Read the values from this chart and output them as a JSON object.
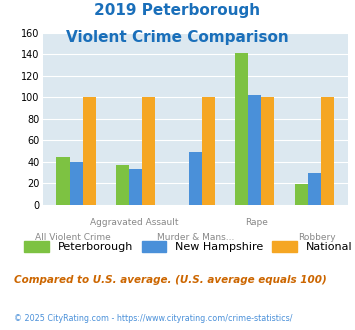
{
  "title_line1": "2019 Peterborough",
  "title_line2": "Violent Crime Comparison",
  "title_color": "#1a6fba",
  "categories": [
    "All Violent Crime",
    "Aggravated Assault",
    "Murder & Mans...",
    "Rape",
    "Robbery"
  ],
  "peterborough": [
    44,
    37,
    0,
    141,
    19
  ],
  "new_hampshire": [
    40,
    33,
    49,
    102,
    29
  ],
  "national": [
    100,
    100,
    100,
    100,
    100
  ],
  "colors": {
    "peterborough": "#7dc242",
    "new_hampshire": "#4a90d9",
    "national": "#f5a623"
  },
  "ylim": [
    0,
    160
  ],
  "yticks": [
    0,
    20,
    40,
    60,
    80,
    100,
    120,
    140,
    160
  ],
  "plot_bg": "#dce8f0",
  "legend_labels": [
    "Peterborough",
    "New Hampshire",
    "National"
  ],
  "top_labels": [
    "",
    "Aggravated Assault",
    "",
    "Rape",
    ""
  ],
  "bottom_labels": [
    "All Violent Crime",
    "",
    "Murder & Mans...",
    "",
    "Robbery"
  ],
  "footer_text": "Compared to U.S. average. (U.S. average equals 100)",
  "footer_color": "#cc6600",
  "copyright_text": "© 2025 CityRating.com - https://www.cityrating.com/crime-statistics/",
  "copyright_color": "#4a90d9",
  "bar_width": 0.22
}
